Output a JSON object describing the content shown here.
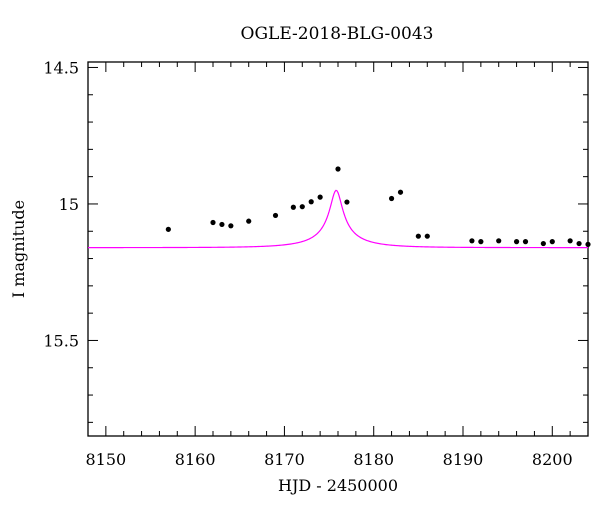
{
  "chart_data": {
    "type": "scatter",
    "title": "OGLE-2018-BLG-0043",
    "xlabel": "HJD - 2450000",
    "ylabel": "I magnitude",
    "xlim": [
      8148,
      8204
    ],
    "ylim": [
      15.85,
      14.48
    ],
    "y_inverted": true,
    "x_ticks": [
      8150,
      8160,
      8170,
      8180,
      8190,
      8200
    ],
    "x_tick_labels": [
      "8150",
      "8160",
      "8170",
      "8180",
      "8190",
      "8200"
    ],
    "y_ticks": [
      14.5,
      15,
      15.5
    ],
    "y_tick_labels": [
      "14.5",
      "15",
      "15.5"
    ],
    "grid": false,
    "colors": {
      "points": "#000000",
      "model": "#ff00ff",
      "axes": "#000000"
    },
    "series": [
      {
        "kind": "points",
        "x": [
          8157,
          8162,
          8163,
          8164,
          8166,
          8169,
          8171,
          8172,
          8173,
          8174,
          8176,
          8177,
          8182,
          8183,
          8185,
          8186,
          8191,
          8192,
          8194,
          8196,
          8197,
          8199,
          8200,
          8202,
          8203,
          8204
        ],
        "y": [
          15.093,
          15.068,
          15.075,
          15.08,
          15.063,
          15.042,
          15.012,
          15.01,
          14.992,
          14.975,
          14.872,
          14.993,
          14.98,
          14.957,
          15.118,
          15.118,
          15.135,
          15.138,
          15.135,
          15.138,
          15.138,
          15.145,
          15.138,
          15.135,
          15.145,
          15.148
        ]
      },
      {
        "kind": "model",
        "t0": 8175.8,
        "tE": 6,
        "u0": 0.12,
        "baseline": 15.16,
        "mag_range": [
          14.95,
          15.16
        ]
      }
    ]
  }
}
